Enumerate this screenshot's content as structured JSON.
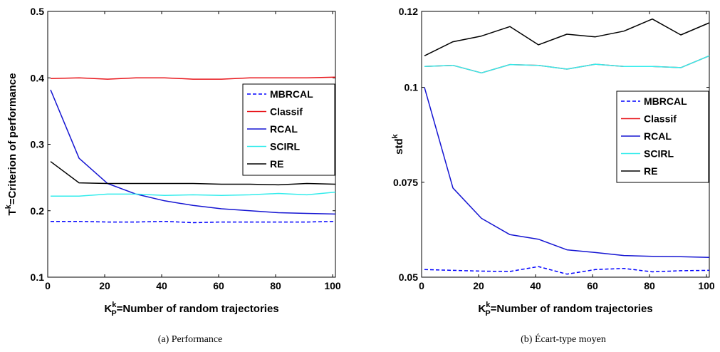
{
  "chart_data": [
    {
      "type": "line",
      "caption": "(a)  Performance",
      "xlabel_parts": {
        "main": "K",
        "sup": "k",
        "sub": "P",
        "rest": "=Number of random trajectories"
      },
      "ylabel_parts": {
        "main": "T",
        "sup": "k",
        "rest": "=Criterion of performance"
      },
      "xlim": [
        0,
        101
      ],
      "ylim": [
        0.1,
        0.5
      ],
      "xticks": [
        0,
        20,
        40,
        60,
        80,
        100
      ],
      "xtick_labels": [
        "0",
        "20",
        "40",
        "60",
        "80",
        "100"
      ],
      "yticks": [
        0.1,
        0.2,
        0.3,
        0.4,
        0.5
      ],
      "ytick_labels": [
        "0.1",
        "0.2",
        "0.3",
        "0.4",
        "0.5"
      ],
      "x": [
        1,
        11,
        21,
        31,
        41,
        51,
        61,
        71,
        81,
        91,
        101
      ],
      "legend_position": "right",
      "series": [
        {
          "name": "MBRCAL",
          "color": "#0000ff",
          "dash": true,
          "values": [
            0.184,
            0.184,
            0.183,
            0.183,
            0.184,
            0.182,
            0.183,
            0.183,
            0.183,
            0.183,
            0.184
          ]
        },
        {
          "name": "Classif",
          "color": "#e8161b",
          "dash": false,
          "values": [
            0.399,
            0.4,
            0.398,
            0.4,
            0.4,
            0.398,
            0.398,
            0.4,
            0.4,
            0.4,
            0.401
          ]
        },
        {
          "name": "RCAL",
          "color": "#1515d2",
          "dash": false,
          "values": [
            0.382,
            0.279,
            0.241,
            0.225,
            0.215,
            0.208,
            0.203,
            0.2,
            0.197,
            0.196,
            0.195
          ]
        },
        {
          "name": "SCIRL",
          "color": "#33ecec",
          "dash": false,
          "values": [
            0.222,
            0.222,
            0.225,
            0.225,
            0.223,
            0.224,
            0.223,
            0.224,
            0.226,
            0.224,
            0.228
          ]
        },
        {
          "name": "RE",
          "color": "#000000",
          "dash": false,
          "values": [
            0.274,
            0.242,
            0.241,
            0.241,
            0.241,
            0.241,
            0.24,
            0.24,
            0.239,
            0.241,
            0.24
          ]
        }
      ]
    },
    {
      "type": "line",
      "caption": "(b)  Écart-type moyen",
      "xlabel_parts": {
        "main": "K",
        "sup": "k",
        "sub": "P",
        "rest": "=Number of random trajectories"
      },
      "ylabel_parts": {
        "main": "std",
        "sup": "k",
        "rest": ""
      },
      "xlim": [
        0,
        101
      ],
      "ylim": [
        0.05,
        0.12
      ],
      "xticks": [
        0,
        20,
        40,
        60,
        80,
        100
      ],
      "xtick_labels": [
        "0",
        "20",
        "40",
        "60",
        "80",
        "100"
      ],
      "yticks": [
        0.05,
        0.075,
        0.1,
        0.12
      ],
      "ytick_labels": [
        "0.05",
        "0.075",
        "0.1",
        "0.12"
      ],
      "x": [
        1,
        11,
        21,
        31,
        41,
        51,
        61,
        71,
        81,
        91,
        101
      ],
      "legend_position": "right",
      "series": [
        {
          "name": "MBRCAL",
          "color": "#0000ff",
          "dash": true,
          "values": [
            0.052,
            0.0518,
            0.0516,
            0.0515,
            0.0528,
            0.0508,
            0.052,
            0.0523,
            0.0514,
            0.0517,
            0.0518
          ]
        },
        {
          "name": "Classif",
          "color": "#e8161b",
          "dash": false,
          "values": [
            0.1055,
            0.1058,
            0.1038,
            0.106,
            0.1058,
            0.1048,
            0.1061,
            0.1055,
            0.1055,
            0.1052,
            0.1083
          ]
        },
        {
          "name": "RCAL",
          "color": "#1515d2",
          "dash": false,
          "values": [
            0.1,
            0.0735,
            0.0655,
            0.0612,
            0.06,
            0.0572,
            0.0565,
            0.0557,
            0.0555,
            0.0554,
            0.0552
          ]
        },
        {
          "name": "SCIRL",
          "color": "#33ecec",
          "dash": false,
          "values": [
            0.1055,
            0.1058,
            0.1038,
            0.106,
            0.1058,
            0.1048,
            0.1061,
            0.1055,
            0.1055,
            0.1052,
            0.1083
          ]
        },
        {
          "name": "RE",
          "color": "#000000",
          "dash": false,
          "values": [
            0.1083,
            0.112,
            0.1135,
            0.116,
            0.1112,
            0.114,
            0.1133,
            0.1148,
            0.118,
            0.1138,
            0.117
          ]
        }
      ]
    }
  ]
}
